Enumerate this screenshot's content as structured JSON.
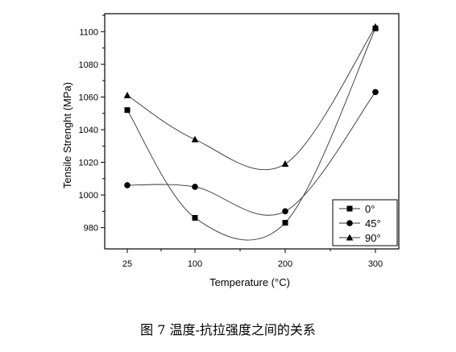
{
  "caption": "图 7  温度-抗拉强度之间的关系",
  "chart_data": {
    "type": "line",
    "xlabel": "Temperature (°C)",
    "ylabel": "Tensile Strenght (MPa)",
    "categories": [
      "25",
      "100",
      "200",
      "300"
    ],
    "yticks": [
      980,
      1000,
      1020,
      1040,
      1060,
      1080,
      1100
    ],
    "ylim": [
      967,
      1111
    ],
    "grid": false,
    "legend_position": "bottom-right",
    "series": [
      {
        "name": "0°",
        "marker": "square",
        "values": [
          1052,
          986,
          983,
          1102
        ]
      },
      {
        "name": "45°",
        "marker": "circle",
        "values": [
          1006,
          1005,
          990,
          1063
        ]
      },
      {
        "name": "90°",
        "marker": "triangle",
        "values": [
          1061,
          1034,
          1019,
          1103
        ]
      }
    ]
  }
}
